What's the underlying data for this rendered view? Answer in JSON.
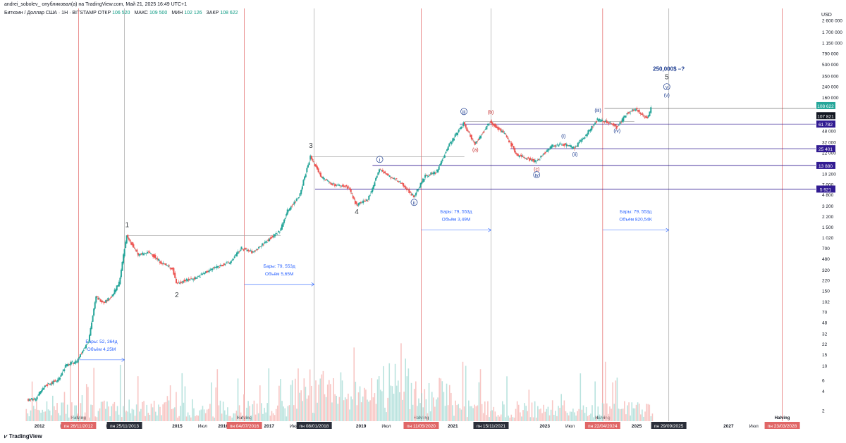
{
  "header": {
    "publisher": "andrei_sobolev_ опубликовал(а) на TradingView.com, Май 21, 2025 16:49 UTC+1",
    "symbol": "Биткоин / Доллар США · 1Н · BITSTAMP",
    "ohlc": [
      {
        "label": "ОТКР",
        "value": "106 520"
      },
      {
        "label": "МАКС",
        "value": "109 500"
      },
      {
        "label": "МИН",
        "value": "102 126"
      },
      {
        "label": "ЗАКР",
        "value": "108 622"
      }
    ]
  },
  "footer": {
    "brand": "TradingView"
  },
  "colors": {
    "up": "#26a69a",
    "down": "#ef5350",
    "halving_line": "#e57373",
    "cycle_line": "#b0b0b0",
    "annotation": "#2962ff",
    "level_box": "#311b92",
    "price_tag": "#26a69a"
  },
  "chart_data": {
    "type": "candlestick",
    "scale": "log",
    "currency_label": "USD",
    "y_ticks": [
      "2 600 000",
      "1 700 000",
      "1 150 000",
      "790 000",
      "530 000",
      "350 000",
      "240 000",
      "160 000",
      "48 000",
      "32 000",
      "22 000",
      "10 200",
      "7 000",
      "4 800",
      "3 200",
      "2 200",
      "1 500",
      "1 020",
      "700",
      "480",
      "320",
      "220",
      "150",
      "102",
      "70",
      "48",
      "32",
      "22",
      "15",
      "10",
      "6",
      "4",
      "2"
    ],
    "x_ticks": [
      "2012",
      "Июл",
      "Июл",
      "2015",
      "Июл",
      "2016",
      "2017",
      "Июл",
      "2019",
      "Июл",
      "2021",
      "Июл",
      "2023",
      "Июл",
      "2025",
      "Июл",
      "2027",
      "Июл",
      "2028"
    ],
    "date_tags": [
      {
        "text": "пн 26/11/2012",
        "kind": "halving"
      },
      {
        "text": "пн 25/11/2013",
        "kind": "cycle"
      },
      {
        "text": "пн 04/07/2016",
        "kind": "halving"
      },
      {
        "text": "пн 08/01/2018",
        "kind": "cycle"
      },
      {
        "text": "пн 11/05/2020",
        "kind": "halving"
      },
      {
        "text": "пн 15/11/2021",
        "kind": "cycle"
      },
      {
        "text": "пн 22/04/2024",
        "kind": "halving"
      },
      {
        "text": "пн 29/09/2025",
        "kind": "cycle"
      },
      {
        "text": "пн 23/03/2028",
        "kind": "halving"
      }
    ],
    "halving_label": "Halving",
    "price_levels": [
      {
        "value": 25401,
        "label": "25 401"
      },
      {
        "value": 13880,
        "label": "13 880"
      },
      {
        "value": 5921,
        "label": "5 921"
      }
    ],
    "price_tags": [
      {
        "value": 108622,
        "label": "108 622",
        "sub": "4d 9h"
      },
      {
        "value": 107821,
        "label": "107 821"
      },
      {
        "value": 61782,
        "label": "61 782"
      }
    ],
    "series": [
      {
        "name": "",
        "points": [
          {
            "date": "2011-10",
            "price": 3
          },
          {
            "date": "2011-12",
            "price": 3
          },
          {
            "date": "2012-03",
            "price": 5
          },
          {
            "date": "2012-06",
            "price": 6
          },
          {
            "date": "2012-08",
            "price": 10
          },
          {
            "date": "2012-11",
            "price": 12
          },
          {
            "date": "2013-02",
            "price": 25
          },
          {
            "date": "2013-04",
            "price": 120
          },
          {
            "date": "2013-06",
            "price": 100
          },
          {
            "date": "2013-08",
            "price": 120
          },
          {
            "date": "2013-10",
            "price": 200
          },
          {
            "date": "2013-12",
            "price": 1100
          },
          {
            "date": "2014-03",
            "price": 550
          },
          {
            "date": "2014-06",
            "price": 600
          },
          {
            "date": "2014-09",
            "price": 420
          },
          {
            "date": "2014-12",
            "price": 330
          },
          {
            "date": "2015-01",
            "price": 200
          },
          {
            "date": "2015-06",
            "price": 240
          },
          {
            "date": "2015-11",
            "price": 350
          },
          {
            "date": "2016-03",
            "price": 420
          },
          {
            "date": "2016-06",
            "price": 700
          },
          {
            "date": "2016-09",
            "price": 600
          },
          {
            "date": "2017-01",
            "price": 950
          },
          {
            "date": "2017-04",
            "price": 1300
          },
          {
            "date": "2017-06",
            "price": 2700
          },
          {
            "date": "2017-09",
            "price": 4500
          },
          {
            "date": "2017-12",
            "price": 19000
          },
          {
            "date": "2018-03",
            "price": 9000
          },
          {
            "date": "2018-06",
            "price": 7000
          },
          {
            "date": "2018-10",
            "price": 6300
          },
          {
            "date": "2018-12",
            "price": 3300
          },
          {
            "date": "2019-03",
            "price": 4000
          },
          {
            "date": "2019-06",
            "price": 12000
          },
          {
            "date": "2019-09",
            "price": 9000
          },
          {
            "date": "2019-12",
            "price": 7200
          },
          {
            "date": "2020-03",
            "price": 4500
          },
          {
            "date": "2020-06",
            "price": 9500
          },
          {
            "date": "2020-09",
            "price": 11000
          },
          {
            "date": "2020-12",
            "price": 28000
          },
          {
            "date": "2021-04",
            "price": 63000
          },
          {
            "date": "2021-07",
            "price": 30000
          },
          {
            "date": "2021-11",
            "price": 68000
          },
          {
            "date": "2022-03",
            "price": 42000
          },
          {
            "date": "2022-06",
            "price": 20000
          },
          {
            "date": "2022-11",
            "price": 16000
          },
          {
            "date": "2023-03",
            "price": 28000
          },
          {
            "date": "2023-06",
            "price": 30000
          },
          {
            "date": "2023-09",
            "price": 26000
          },
          {
            "date": "2023-12",
            "price": 42000
          },
          {
            "date": "2024-03",
            "price": 72000
          },
          {
            "date": "2024-06",
            "price": 65000
          },
          {
            "date": "2024-08",
            "price": 55000
          },
          {
            "date": "2024-11",
            "price": 95000
          },
          {
            "date": "2025-01",
            "price": 105000
          },
          {
            "date": "2025-04",
            "price": 76000
          },
          {
            "date": "2025-05",
            "price": 108622
          }
        ]
      }
    ],
    "wave_labels": [
      {
        "text": "1",
        "date": "2013-12",
        "price": 1500
      },
      {
        "text": "2",
        "date": "2015-01",
        "price": 120
      },
      {
        "text": "3",
        "date": "2017-12",
        "price": 26000
      },
      {
        "text": "4",
        "date": "2018-12",
        "price": 2400
      },
      {
        "text": "i",
        "date": "2019-06",
        "price": 16000
      },
      {
        "text": "ii",
        "date": "2020-03",
        "price": 3400
      },
      {
        "text": "iii",
        "date": "2021-04",
        "price": 90000
      },
      {
        "text": "(a)",
        "date": "2021-07",
        "price": 23000
      },
      {
        "text": "(b)",
        "date": "2021-11",
        "price": 90000
      },
      {
        "text": "(c)",
        "date": "2022-11",
        "price": 11500
      },
      {
        "text": "iv",
        "date": "2022-11",
        "price": 9200
      },
      {
        "text": "(i)",
        "date": "2023-06",
        "price": 38000
      },
      {
        "text": "(ii)",
        "date": "2023-09",
        "price": 19500
      },
      {
        "text": "(iii)",
        "date": "2024-03",
        "price": 95000
      },
      {
        "text": "(iv)",
        "date": "2024-08",
        "price": 46000
      },
      {
        "text": "5",
        "date": "2025-09",
        "price": 310000
      },
      {
        "text": "v",
        "date": "2025-09",
        "price": 220000
      },
      {
        "text": "(v)",
        "date": "2025-09",
        "price": 165000
      }
    ],
    "target_label": "250,000$ –?",
    "range_annotations": [
      {
        "bars": "Бары: 52, 364д",
        "volume": "Объём 4,25M"
      },
      {
        "bars": "Бары: 79, 553д",
        "volume": "Объём 5,65M"
      },
      {
        "bars": "Бары: 79, 553д",
        "volume": "Объём 3,49M"
      },
      {
        "bars": "Бары: 79, 553д",
        "volume": "Объём 820,54K"
      }
    ]
  }
}
